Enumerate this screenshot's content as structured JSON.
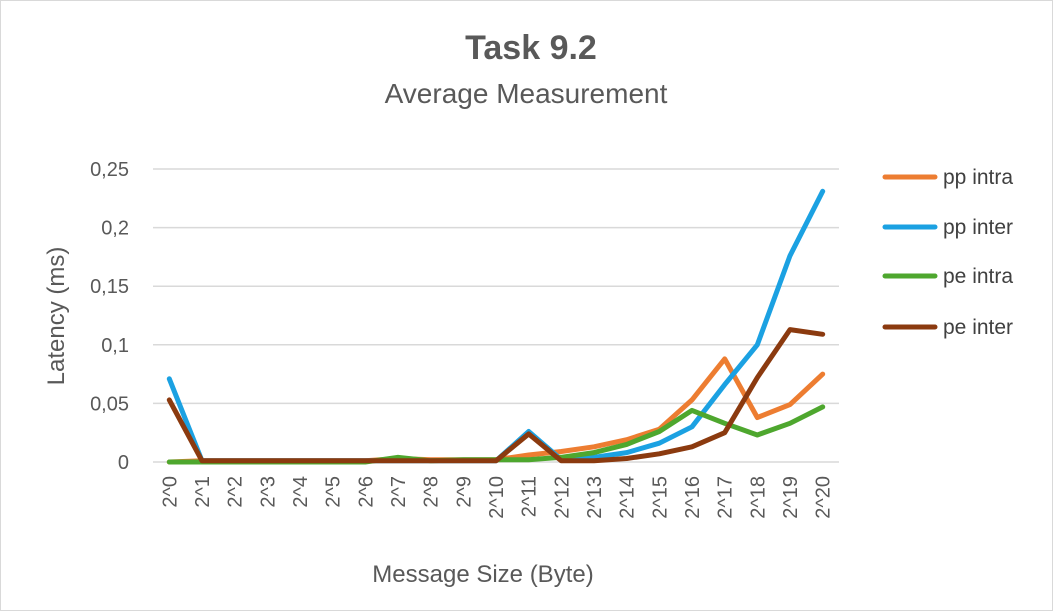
{
  "chart_data": {
    "type": "line",
    "title": "Task 9.2",
    "subtitle": "Average Measurement",
    "xlabel": "Message Size (Byte)",
    "ylabel": "Latency (ms)",
    "ylim": [
      0,
      0.25
    ],
    "yticks": [
      "0",
      "0,05",
      "0,1",
      "0,15",
      "0,2",
      "0,25"
    ],
    "ytick_values": [
      0,
      0.05,
      0.1,
      0.15,
      0.2,
      0.25
    ],
    "grid": true,
    "legend_position": "right",
    "categories": [
      "2^0",
      "2^1",
      "2^2",
      "2^3",
      "2^4",
      "2^5",
      "2^6",
      "2^7",
      "2^8",
      "2^9",
      "2^10",
      "2^11",
      "2^12",
      "2^13",
      "2^14",
      "2^15",
      "2^16",
      "2^17",
      "2^18",
      "2^19",
      "2^20"
    ],
    "series": [
      {
        "name": "pp intra",
        "color": "#ed7d31",
        "values": [
          0.0,
          0.001,
          0.001,
          0.001,
          0.001,
          0.001,
          0.001,
          0.003,
          0.002,
          0.002,
          0.002,
          0.006,
          0.009,
          0.013,
          0.019,
          0.028,
          0.053,
          0.088,
          0.038,
          0.049,
          0.075
        ]
      },
      {
        "name": "pp inter",
        "color": "#1ba1e2",
        "values": [
          0.071,
          0.001,
          0.001,
          0.001,
          0.001,
          0.001,
          0.001,
          0.001,
          0.001,
          0.001,
          0.001,
          0.026,
          0.002,
          0.004,
          0.008,
          0.016,
          0.03,
          0.066,
          0.1,
          0.176,
          0.231
        ]
      },
      {
        "name": "pe intra",
        "color": "#4ea72e",
        "values": [
          0.0,
          0.0,
          0.0,
          0.0,
          0.0,
          0.0,
          0.0,
          0.004,
          0.001,
          0.002,
          0.002,
          0.002,
          0.004,
          0.008,
          0.015,
          0.026,
          0.044,
          0.033,
          0.023,
          0.033,
          0.047
        ]
      },
      {
        "name": "pe inter",
        "color": "#8b3a0f",
        "values": [
          0.053,
          0.001,
          0.001,
          0.001,
          0.001,
          0.001,
          0.001,
          0.001,
          0.001,
          0.001,
          0.001,
          0.024,
          0.001,
          0.001,
          0.003,
          0.007,
          0.013,
          0.025,
          0.072,
          0.113,
          0.109
        ]
      }
    ]
  }
}
